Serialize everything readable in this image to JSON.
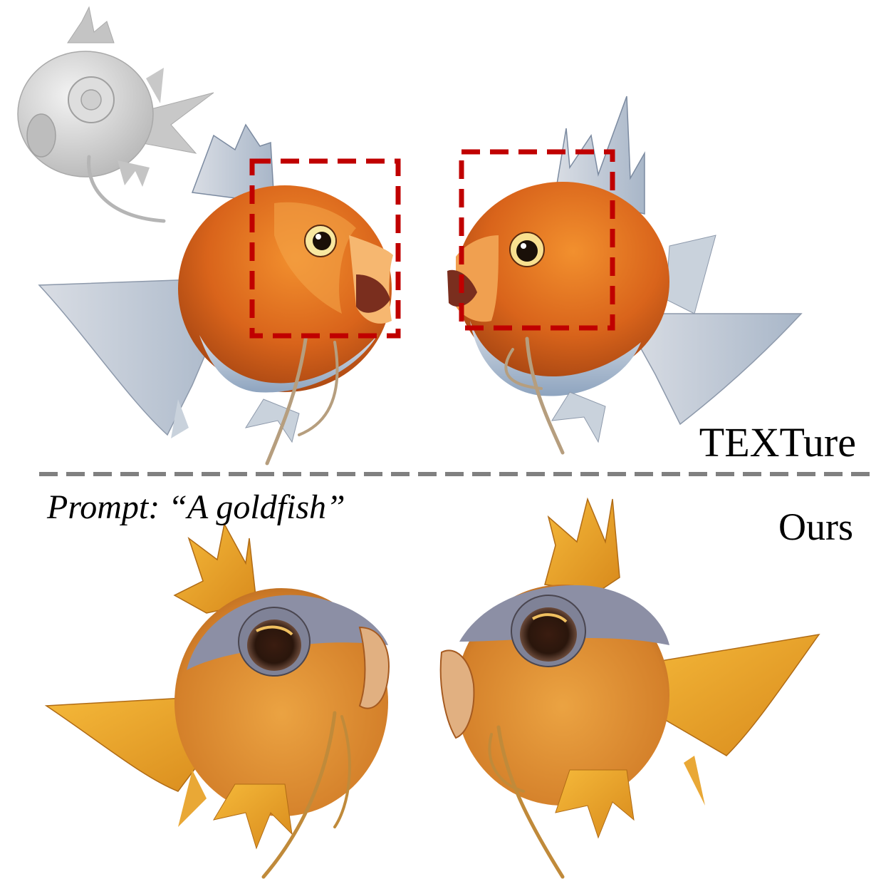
{
  "figure": {
    "methods": {
      "top_label": "TEXTure",
      "bottom_label": "Ours"
    },
    "prompt_text": "Prompt: “A goldfish”",
    "colors": {
      "highlight_box": "#c00000",
      "separator": "#808080",
      "mesh_gray": "#cccccc",
      "texture_orange": "#e0661a",
      "texture_belly": "#b9c9d9",
      "ours_orange": "#e8a22a",
      "ours_head": "#8c8fa5"
    }
  }
}
